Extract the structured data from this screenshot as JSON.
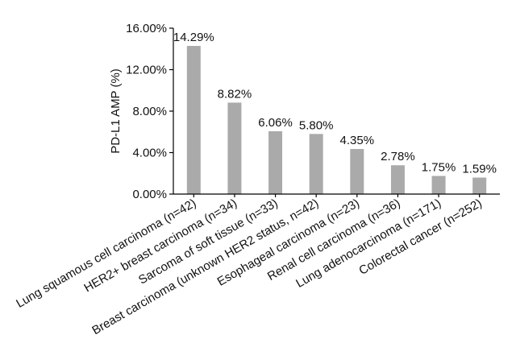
{
  "chart_data": {
    "type": "bar",
    "title": "",
    "xlabel": "",
    "ylabel": "PD-L1 AMP (%)",
    "ylim": [
      0,
      16
    ],
    "yticks": [
      "0.00%",
      "4.00%",
      "8.00%",
      "12.00%",
      "16.00%"
    ],
    "ytick_values": [
      0,
      4,
      8,
      12,
      16
    ],
    "grid": false,
    "legend": "none",
    "bar_color": "#aaaaaa",
    "categories": [
      "Lung squamous cell carcinoma (n=42)",
      "HER2+ breast carcinoma (n=34)",
      "Sarcoma of soft tissue (n=33)",
      "Breast carcinoma (unknown HER2 status, n=42)",
      "Esophageal carcinoma (n=23)",
      "Renal cell carcinoma (n=36)",
      "Lung adenocarcinoma (n=171)",
      "Colorectal cancer (n=252)"
    ],
    "values": [
      14.29,
      8.82,
      6.06,
      5.8,
      4.35,
      2.78,
      1.75,
      1.59
    ],
    "value_labels": [
      "14.29%",
      "8.82%",
      "6.06%",
      "5.80%",
      "4.35%",
      "2.78%",
      "1.75%",
      "1.59%"
    ]
  }
}
